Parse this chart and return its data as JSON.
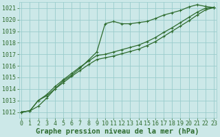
{
  "title": "Graphe pression niveau de la mer (hPa)",
  "xlabel": "Graphe pression niveau de la mer (hPa)",
  "bg_color": "#cce8e8",
  "grid_color": "#99cccc",
  "line_color": "#2d6b2d",
  "x_values": [
    0,
    1,
    2,
    3,
    4,
    5,
    6,
    7,
    8,
    9,
    10,
    11,
    12,
    13,
    14,
    15,
    16,
    17,
    18,
    19,
    20,
    21,
    22,
    23
  ],
  "line1": [
    1012.0,
    1012.1,
    1012.5,
    1013.2,
    1014.0,
    1014.7,
    1015.2,
    1015.8,
    1016.5,
    1017.2,
    1019.65,
    1019.85,
    1019.65,
    1019.65,
    1019.75,
    1019.85,
    1020.1,
    1020.4,
    1020.6,
    1020.8,
    1021.1,
    1021.3,
    1021.15,
    1021.05
  ],
  "line2": [
    1012.0,
    1012.1,
    1013.0,
    1013.5,
    1014.2,
    1014.8,
    1015.35,
    1015.9,
    1016.4,
    1016.9,
    1017.0,
    1017.2,
    1017.4,
    1017.6,
    1017.8,
    1018.1,
    1018.45,
    1018.9,
    1019.3,
    1019.75,
    1020.2,
    1020.65,
    1021.0,
    1021.05
  ],
  "line3": [
    1012.0,
    1012.1,
    1013.0,
    1013.4,
    1014.0,
    1014.55,
    1015.1,
    1015.6,
    1016.1,
    1016.55,
    1016.7,
    1016.85,
    1017.05,
    1017.25,
    1017.45,
    1017.75,
    1018.1,
    1018.55,
    1019.0,
    1019.45,
    1019.9,
    1020.4,
    1020.85,
    1021.05
  ],
  "ylim": [
    1011.5,
    1021.5
  ],
  "yticks": [
    1012,
    1013,
    1014,
    1015,
    1016,
    1017,
    1018,
    1019,
    1020,
    1021
  ],
  "xlim": [
    -0.3,
    23.3
  ],
  "xticks": [
    0,
    1,
    2,
    3,
    4,
    5,
    6,
    7,
    8,
    9,
    10,
    11,
    12,
    13,
    14,
    15,
    16,
    17,
    18,
    19,
    20,
    21,
    22,
    23
  ],
  "title_fontsize": 7.5,
  "tick_fontsize": 6,
  "marker_size": 3.5,
  "linewidth": 0.9
}
